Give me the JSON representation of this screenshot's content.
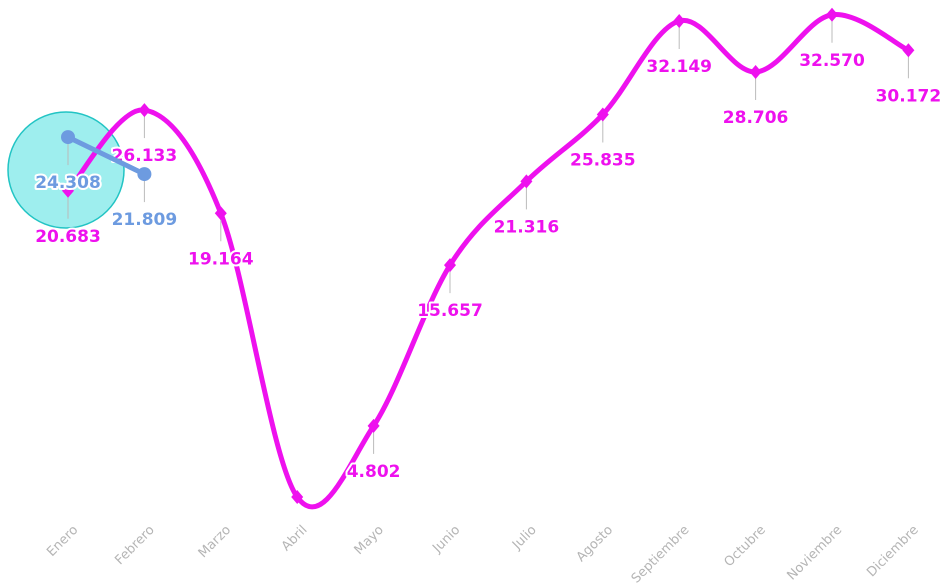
{
  "chart_data": {
    "type": "line",
    "categories": [
      "Enero",
      "Febrero",
      "Marzo",
      "Abril",
      "Mayo",
      "Junio",
      "Julio",
      "Agosto",
      "Septiembre",
      "Octubre",
      "Noviembre",
      "Diciembre"
    ],
    "series": [
      {
        "color": "#ee11ee",
        "values": [
          20.683,
          26.133,
          19.164,
          0,
          4.802,
          15.657,
          21.316,
          25.835,
          32.149,
          28.706,
          32.57,
          30.172
        ],
        "value_labels": [
          "20.683",
          "26.133",
          "19.164",
          null,
          "4.802",
          "15.657",
          "21.316",
          "25.835",
          "32.149",
          "28.706",
          "32.570",
          "30.172"
        ]
      },
      {
        "color": "#6d9be0",
        "values": [
          24.308,
          21.809,
          null,
          null,
          null,
          null,
          null,
          null,
          null,
          null,
          null,
          null
        ]
      }
    ],
    "ylim": [
      0,
      33.5
    ]
  }
}
